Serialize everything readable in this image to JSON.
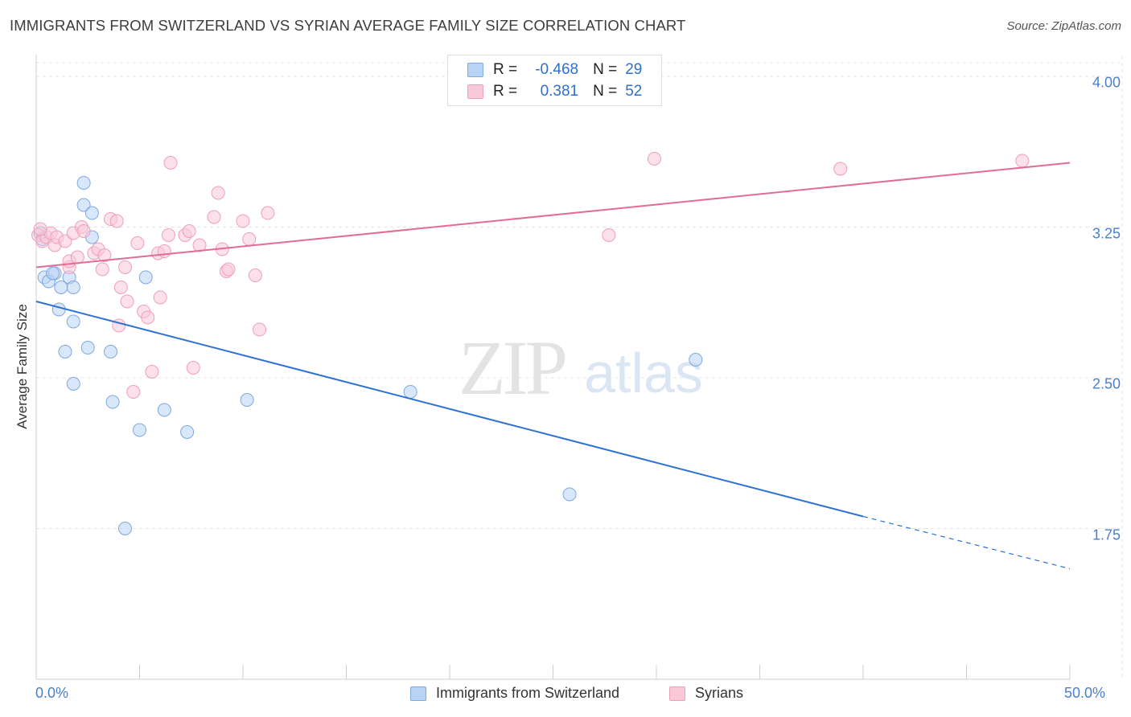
{
  "title": "IMMIGRANTS FROM SWITZERLAND VS SYRIAN AVERAGE FAMILY SIZE CORRELATION CHART",
  "source": "Source: ZipAtlas.com",
  "watermark": {
    "zip": "ZIP",
    "atlas": "atlas"
  },
  "legend": {
    "r_label": "R =",
    "n_label": "N =",
    "rows": [
      {
        "r": "-0.468",
        "n": "29"
      },
      {
        "r": "0.381",
        "n": "52"
      }
    ]
  },
  "bottom_legend": [
    "Immigrants from Switzerland",
    "Syrians"
  ],
  "colors": {
    "switzerland_fill": "#b9d3f5",
    "switzerland_stroke": "#7fa8e0",
    "switzerland_line": "#2d72d2",
    "syrian_fill": "#f9c9d8",
    "syrian_stroke": "#ef9fb8",
    "syrian_line": "#e26b97",
    "axis_text": "#4a7fcb",
    "grid": "#e4e4e4"
  },
  "chart_data": {
    "type": "scatter",
    "title": "IMMIGRANTS FROM SWITZERLAND VS SYRIAN AVERAGE FAMILY SIZE CORRELATION CHART",
    "xlabel": "",
    "ylabel": "Average Family Size",
    "xlim": [
      0,
      50
    ],
    "ylim": [
      1.0,
      4.1
    ],
    "x_unit": "%",
    "x_tick_labels": [
      "0.0%",
      "50.0%"
    ],
    "y_ticks": [
      1.75,
      2.5,
      3.25,
      4.0
    ],
    "y_tick_labels": [
      "1.75",
      "2.50",
      "3.25",
      "4.00"
    ],
    "grid": true,
    "legend_position": "top-center",
    "series": [
      {
        "name": "Immigrants from Switzerland",
        "R": -0.468,
        "N": 29,
        "trend": {
          "x_start": 0,
          "y_start": 2.88,
          "x_solid_end": 40,
          "y_solid_end": 1.81,
          "x_end": 50,
          "y_end": 1.55
        },
        "points": [
          [
            0.2,
            3.22
          ],
          [
            0.4,
            3.0
          ],
          [
            0.6,
            2.98
          ],
          [
            0.9,
            3.02
          ],
          [
            0.8,
            3.02
          ],
          [
            1.1,
            2.84
          ],
          [
            1.2,
            2.95
          ],
          [
            1.6,
            3.0
          ],
          [
            1.8,
            2.95
          ],
          [
            1.4,
            2.63
          ],
          [
            1.8,
            2.78
          ],
          [
            1.8,
            2.47
          ],
          [
            2.3,
            3.47
          ],
          [
            2.3,
            3.36
          ],
          [
            2.7,
            3.32
          ],
          [
            2.7,
            3.2
          ],
          [
            2.5,
            2.65
          ],
          [
            3.6,
            2.63
          ],
          [
            3.7,
            2.38
          ],
          [
            4.3,
            1.75
          ],
          [
            5.0,
            2.24
          ],
          [
            5.3,
            3.0
          ],
          [
            6.2,
            2.34
          ],
          [
            7.3,
            2.23
          ],
          [
            10.2,
            2.39
          ],
          [
            18.1,
            2.43
          ],
          [
            25.8,
            1.92
          ],
          [
            31.9,
            2.59
          ],
          [
            0.3,
            3.19
          ]
        ]
      },
      {
        "name": "Syrians",
        "R": 0.381,
        "N": 52,
        "trend": {
          "x_start": 0,
          "y_start": 3.05,
          "x_end": 50,
          "y_end": 3.57
        },
        "points": [
          [
            0.1,
            3.21
          ],
          [
            0.3,
            3.18
          ],
          [
            0.5,
            3.2
          ],
          [
            0.7,
            3.22
          ],
          [
            0.9,
            3.16
          ],
          [
            1.0,
            3.2
          ],
          [
            1.4,
            3.18
          ],
          [
            1.6,
            3.05
          ],
          [
            1.6,
            3.08
          ],
          [
            1.8,
            3.22
          ],
          [
            2.0,
            3.1
          ],
          [
            2.2,
            3.25
          ],
          [
            2.3,
            3.23
          ],
          [
            2.8,
            3.12
          ],
          [
            3.0,
            3.14
          ],
          [
            3.2,
            3.04
          ],
          [
            3.3,
            3.11
          ],
          [
            3.6,
            3.29
          ],
          [
            3.9,
            3.28
          ],
          [
            4.0,
            2.76
          ],
          [
            4.1,
            2.95
          ],
          [
            4.3,
            3.05
          ],
          [
            4.4,
            2.88
          ],
          [
            4.7,
            2.43
          ],
          [
            4.9,
            3.17
          ],
          [
            5.2,
            2.83
          ],
          [
            5.4,
            2.8
          ],
          [
            5.6,
            2.53
          ],
          [
            5.9,
            3.12
          ],
          [
            6.0,
            2.9
          ],
          [
            6.2,
            3.13
          ],
          [
            6.4,
            3.21
          ],
          [
            6.5,
            3.57
          ],
          [
            7.2,
            3.21
          ],
          [
            7.4,
            3.23
          ],
          [
            7.6,
            2.55
          ],
          [
            7.9,
            3.16
          ],
          [
            8.6,
            3.3
          ],
          [
            8.8,
            3.42
          ],
          [
            9.0,
            3.14
          ],
          [
            9.2,
            3.03
          ],
          [
            9.3,
            3.04
          ],
          [
            10.0,
            3.28
          ],
          [
            10.3,
            3.19
          ],
          [
            10.6,
            3.01
          ],
          [
            10.8,
            2.74
          ],
          [
            11.2,
            3.32
          ],
          [
            27.7,
            3.21
          ],
          [
            29.9,
            3.59
          ],
          [
            38.9,
            3.54
          ],
          [
            47.7,
            3.58
          ],
          [
            0.2,
            3.24
          ]
        ]
      }
    ]
  }
}
